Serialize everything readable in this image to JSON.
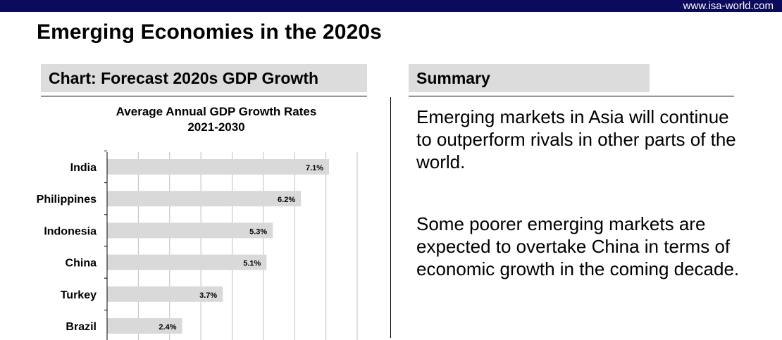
{
  "header": {
    "url": "www.isa-world.com"
  },
  "page": {
    "title": "Emerging Economies in the 2020s"
  },
  "left_panel": {
    "header": "Chart: Forecast 2020s GDP Growth"
  },
  "right_panel": {
    "header": "Summary",
    "paragraphs": [
      "Emerging markets in Asia will continue to outperform rivals in other parts of the world.",
      "Some poorer emerging markets are expected to overtake China in terms of economic growth in the coming decade."
    ]
  },
  "colors": {
    "top_bar": "#0b0b5e",
    "header_bg": "#dcdcdc",
    "bar_fill": "#d9d9d9"
  },
  "chart_data": {
    "type": "bar",
    "orientation": "horizontal",
    "title": "Average Annual GDP Growth Rates",
    "subtitle": "2021-2030",
    "categories": [
      "India",
      "Philippines",
      "Indonesia",
      "China",
      "Turkey",
      "Brazil"
    ],
    "values": [
      7.1,
      6.2,
      5.3,
      5.1,
      3.7,
      2.4
    ],
    "data_labels": [
      "7.1%",
      "6.2%",
      "5.3%",
      "5.1%",
      "3.7%",
      "2.4%"
    ],
    "xlim": [
      0,
      8
    ],
    "grid": true
  }
}
